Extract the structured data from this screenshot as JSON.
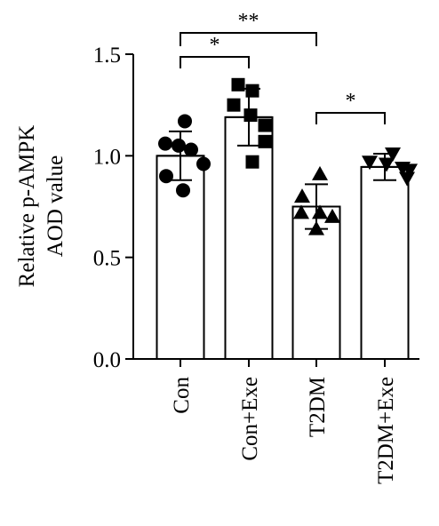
{
  "chart_data": {
    "type": "bar",
    "categories": [
      "Con",
      "Con+Exe",
      "T2DM",
      "T2DM+Exe"
    ],
    "ylabel_line1": "Relative p-AMPK",
    "ylabel_line2": "AOD value",
    "xlabel": "",
    "ylim": [
      0.0,
      1.5
    ],
    "yticks": [
      "0.0",
      "0.5",
      "1.0",
      "1.5"
    ],
    "ytick_values": [
      0.0,
      0.5,
      1.0,
      1.5
    ],
    "means": [
      1.0,
      1.19,
      0.75,
      0.945
    ],
    "sd": [
      0.12,
      0.14,
      0.11,
      0.065
    ],
    "points": [
      [
        1.17,
        1.06,
        1.05,
        1.03,
        0.96,
        0.9,
        0.83
      ],
      [
        1.35,
        1.32,
        1.25,
        1.2,
        1.15,
        1.07,
        0.97
      ],
      [
        0.91,
        0.8,
        0.72,
        0.72,
        0.7,
        0.64
      ],
      [
        1.01,
        0.97,
        0.96,
        0.94,
        0.93,
        0.89
      ]
    ],
    "markers": [
      "circle",
      "square",
      "triangle-up",
      "triangle-down"
    ],
    "significance": [
      {
        "from": 0,
        "to": 1,
        "label": "*",
        "y": 1.42
      },
      {
        "from": 0,
        "to": 2,
        "label": "**",
        "y": 1.58
      },
      {
        "from": 2,
        "to": 3,
        "label": "*",
        "y": 1.22
      }
    ],
    "bar_fill": "#ffffff",
    "bar_stroke": "#000000",
    "marker_color": "#000000",
    "grid": false
  }
}
